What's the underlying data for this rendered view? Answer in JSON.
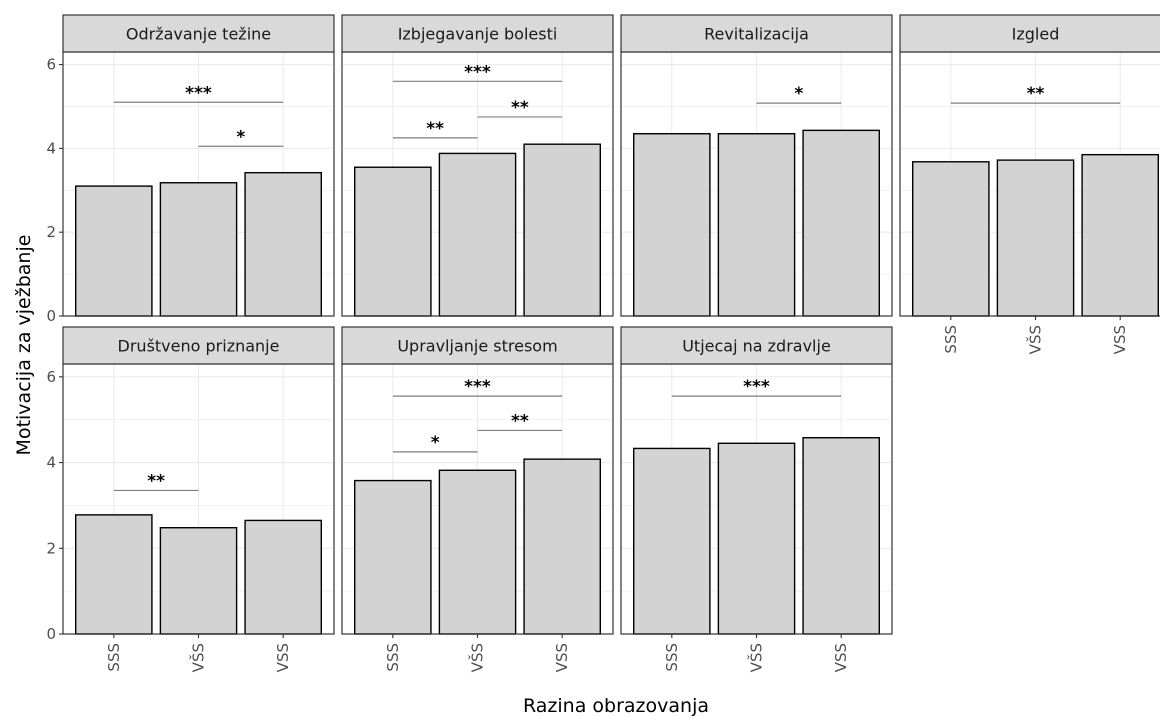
{
  "chart_data": {
    "type": "bar",
    "xlabel": "Razina obrazovanja",
    "ylabel": "Motivacija za vježbanje",
    "ylim": [
      0,
      6.3
    ],
    "yticks": [
      0,
      2,
      4,
      6
    ],
    "grid": true,
    "categories": [
      "SSS",
      "VŠS",
      "VSS"
    ],
    "colors": {
      "bar_fill": "#d3d3d3",
      "strip_fill": "#d9d9d9",
      "grid": "#ebebeb",
      "bracket": "#7f7f7f"
    },
    "panels": [
      {
        "title": "Održavanje težine",
        "values": [
          3.1,
          3.18,
          3.42
        ],
        "brackets": [
          {
            "from": 0,
            "to": 2,
            "y": 5.1,
            "label": "***"
          },
          {
            "from": 1,
            "to": 2,
            "y": 4.05,
            "label": "*"
          }
        ]
      },
      {
        "title": "Izbjegavanje bolesti",
        "values": [
          3.55,
          3.88,
          4.1
        ],
        "brackets": [
          {
            "from": 0,
            "to": 2,
            "y": 5.6,
            "label": "***"
          },
          {
            "from": 1,
            "to": 2,
            "y": 4.75,
            "label": "**"
          },
          {
            "from": 0,
            "to": 1,
            "y": 4.25,
            "label": "**"
          }
        ]
      },
      {
        "title": "Revitalizacija",
        "values": [
          4.35,
          4.35,
          4.43
        ],
        "brackets": [
          {
            "from": 1,
            "to": 2,
            "y": 5.08,
            "label": "*"
          }
        ]
      },
      {
        "title": "Izgled",
        "values": [
          3.68,
          3.72,
          3.85
        ],
        "brackets": [
          {
            "from": 0,
            "to": 2,
            "y": 5.08,
            "label": "**"
          }
        ]
      },
      {
        "title": "Društveno priznanje",
        "values": [
          2.78,
          2.48,
          2.65
        ],
        "brackets": [
          {
            "from": 0,
            "to": 1,
            "y": 3.35,
            "label": "**"
          }
        ]
      },
      {
        "title": "Upravljanje stresom",
        "values": [
          3.58,
          3.82,
          4.08
        ],
        "brackets": [
          {
            "from": 0,
            "to": 2,
            "y": 5.55,
            "label": "***"
          },
          {
            "from": 1,
            "to": 2,
            "y": 4.75,
            "label": "**"
          },
          {
            "from": 0,
            "to": 1,
            "y": 4.25,
            "label": "*"
          }
        ]
      },
      {
        "title": "Utjecaj na zdravlje",
        "values": [
          4.33,
          4.45,
          4.58
        ],
        "brackets": [
          {
            "from": 0,
            "to": 2,
            "y": 5.55,
            "label": "***"
          }
        ]
      }
    ]
  }
}
